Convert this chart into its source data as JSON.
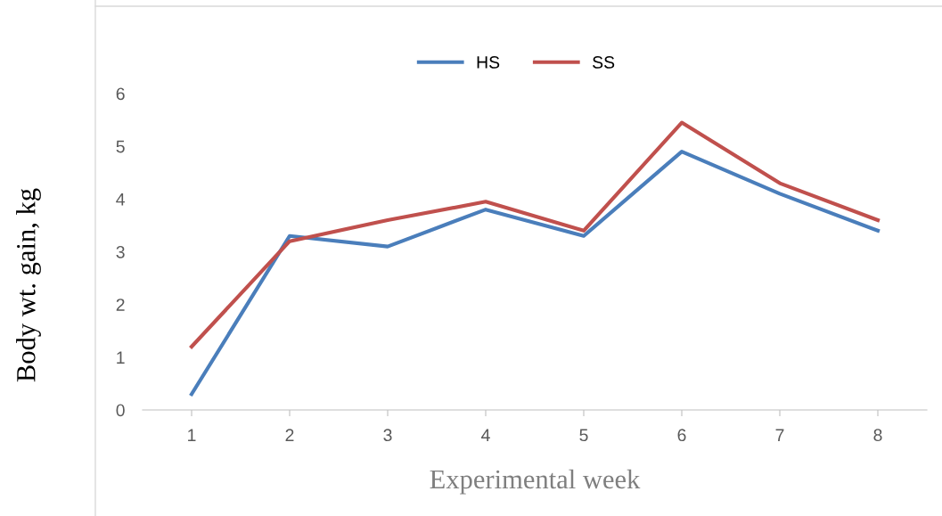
{
  "chart_data": {
    "type": "line",
    "xlabel": "Experimental week",
    "ylabel": "Body wt. gain, kg",
    "categories": [
      "1",
      "2",
      "3",
      "4",
      "5",
      "6",
      "7",
      "8"
    ],
    "series": [
      {
        "name": "HS",
        "color": "#4a7ebb",
        "values": [
          0.3,
          3.3,
          3.1,
          3.8,
          3.3,
          4.9,
          4.1,
          3.4
        ]
      },
      {
        "name": "SS",
        "color": "#c0504d",
        "values": [
          1.2,
          3.2,
          3.6,
          3.95,
          3.4,
          5.45,
          4.3,
          3.6
        ]
      }
    ],
    "ylim": [
      0,
      6
    ],
    "yticks": [
      0,
      1,
      2,
      3,
      4,
      5,
      6
    ],
    "grid": false,
    "legend": "top",
    "marker": "none",
    "line_style": "solid"
  }
}
